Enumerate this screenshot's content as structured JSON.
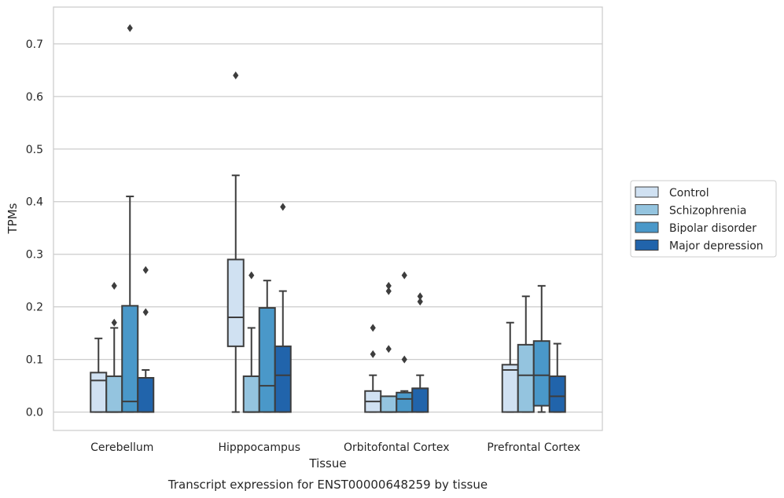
{
  "chart_data": {
    "type": "boxplot",
    "title": "",
    "caption": "Transcript expression for ENST00000648259 by tissue",
    "xlabel": "Tissue",
    "ylabel": "TPMs",
    "ylim": [
      -0.035,
      0.77
    ],
    "yticks": [
      "0.0",
      "0.1",
      "0.2",
      "0.3",
      "0.4",
      "0.5",
      "0.6",
      "0.7"
    ],
    "grid": "horizontal",
    "legend_position": "right",
    "categories": [
      "Cerebellum",
      "Hipppocampus",
      "Orbitofontal Cortex",
      "Prefrontal Cortex"
    ],
    "series": [
      {
        "name": "Control",
        "color": "#d0e1f2",
        "boxes": [
          {
            "whislo": 0.0,
            "q1": 0.0,
            "med": 0.06,
            "q3": 0.075,
            "whishi": 0.14,
            "fliers": []
          },
          {
            "whislo": 0.0,
            "q1": 0.125,
            "med": 0.18,
            "q3": 0.29,
            "whishi": 0.45,
            "fliers": [
              0.64
            ]
          },
          {
            "whislo": 0.0,
            "q1": 0.0,
            "med": 0.02,
            "q3": 0.04,
            "whishi": 0.07,
            "fliers": [
              0.11,
              0.16
            ]
          },
          {
            "whislo": 0.0,
            "q1": 0.0,
            "med": 0.08,
            "q3": 0.09,
            "whishi": 0.17,
            "fliers": []
          }
        ]
      },
      {
        "name": "Schizophrenia",
        "color": "#94c4df",
        "boxes": [
          {
            "whislo": 0.0,
            "q1": 0.0,
            "med": 0.0,
            "q3": 0.068,
            "whishi": 0.16,
            "fliers": [
              0.17,
              0.24
            ]
          },
          {
            "whislo": 0.0,
            "q1": 0.0,
            "med": 0.0,
            "q3": 0.068,
            "whishi": 0.16,
            "fliers": [
              0.26
            ]
          },
          {
            "whislo": 0.0,
            "q1": 0.0,
            "med": 0.0,
            "q3": 0.03,
            "whishi": 0.03,
            "fliers": [
              0.12,
              0.23,
              0.24
            ]
          },
          {
            "whislo": 0.0,
            "q1": 0.0,
            "med": 0.07,
            "q3": 0.128,
            "whishi": 0.22,
            "fliers": []
          }
        ]
      },
      {
        "name": "Bipolar disorder",
        "color": "#4a98c9",
        "boxes": [
          {
            "whislo": 0.0,
            "q1": 0.0,
            "med": 0.02,
            "q3": 0.202,
            "whishi": 0.41,
            "fliers": [
              0.73
            ]
          },
          {
            "whislo": 0.0,
            "q1": 0.0,
            "med": 0.05,
            "q3": 0.198,
            "whishi": 0.25,
            "fliers": []
          },
          {
            "whislo": 0.0,
            "q1": 0.0,
            "med": 0.025,
            "q3": 0.037,
            "whishi": 0.04,
            "fliers": [
              0.1,
              0.26
            ]
          },
          {
            "whislo": 0.0,
            "q1": 0.012,
            "med": 0.07,
            "q3": 0.135,
            "whishi": 0.24,
            "fliers": []
          }
        ]
      },
      {
        "name": "Major depression",
        "color": "#2164ab",
        "boxes": [
          {
            "whislo": 0.0,
            "q1": 0.0,
            "med": 0.065,
            "q3": 0.065,
            "whishi": 0.08,
            "fliers": [
              0.19,
              0.27
            ]
          },
          {
            "whislo": 0.0,
            "q1": 0.0,
            "med": 0.07,
            "q3": 0.125,
            "whishi": 0.23,
            "fliers": [
              0.39
            ]
          },
          {
            "whislo": 0.0,
            "q1": 0.0,
            "med": 0.045,
            "q3": 0.045,
            "whishi": 0.07,
            "fliers": [
              0.21,
              0.22
            ]
          },
          {
            "whislo": 0.0,
            "q1": 0.0,
            "med": 0.03,
            "q3": 0.068,
            "whishi": 0.13,
            "fliers": []
          }
        ]
      }
    ]
  }
}
